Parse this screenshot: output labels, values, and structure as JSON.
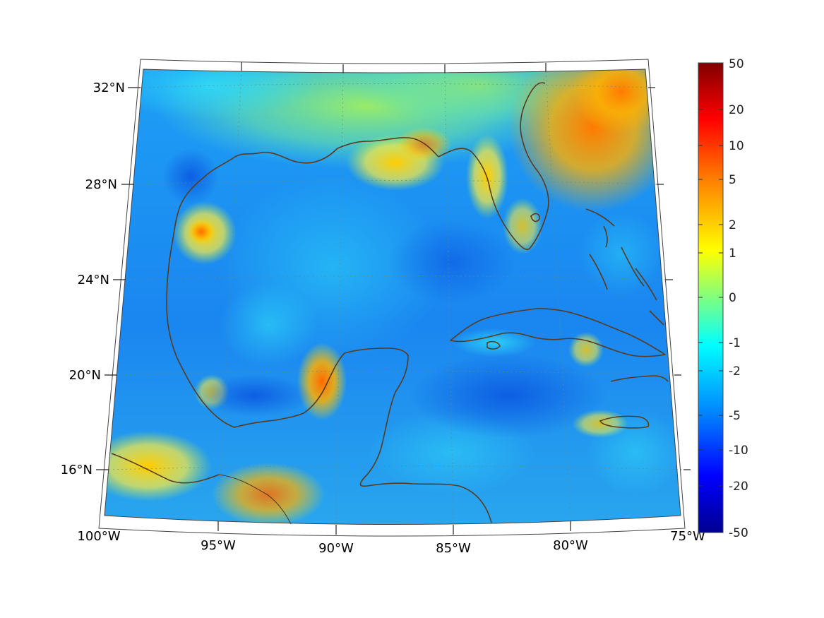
{
  "map": {
    "region": "Gulf of Mexico and Caribbean",
    "lat_labels": [
      "32°N",
      "28°N",
      "24°N",
      "20°N",
      "16°N"
    ],
    "lon_labels": [
      "100°W",
      "95°W",
      "90°W",
      "85°W",
      "80°W",
      "75°W"
    ],
    "colorbar": {
      "labels": [
        "50",
        "20",
        "10",
        "5",
        "2",
        "1",
        "0",
        "-1",
        "-2",
        "-5",
        "-10",
        "-20",
        "-50"
      ],
      "colormap": "jet",
      "colors": [
        "#00008f",
        "#0000ff",
        "#0080ff",
        "#00ffff",
        "#80ff80",
        "#ffff00",
        "#ff8000",
        "#ff0000",
        "#800000"
      ]
    },
    "land_color": "#ffffff",
    "coastline_color": "#5a3a1e"
  }
}
